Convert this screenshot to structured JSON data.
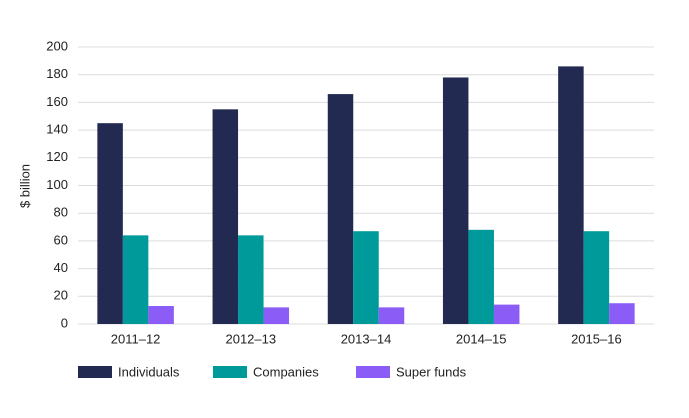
{
  "chart_data": {
    "type": "bar",
    "y_label": "$ billion",
    "categories": [
      "2011–12",
      "2012–13",
      "2013–14",
      "2014–15",
      "2015–16"
    ],
    "series": [
      {
        "name": "Individuals",
        "color": "#232a52",
        "values": [
          145,
          155,
          166,
          178,
          186
        ]
      },
      {
        "name": "Companies",
        "color": "#009a9a",
        "values": [
          64,
          64,
          67,
          68,
          67
        ]
      },
      {
        "name": "Super funds",
        "color": "#8b5cf6",
        "values": [
          13,
          12,
          12,
          14,
          15
        ]
      }
    ],
    "ylim": [
      0,
      200
    ],
    "yticks": [
      0,
      20,
      40,
      60,
      80,
      100,
      120,
      140,
      160,
      180,
      200
    ],
    "grid": true,
    "legend": "bottom"
  }
}
